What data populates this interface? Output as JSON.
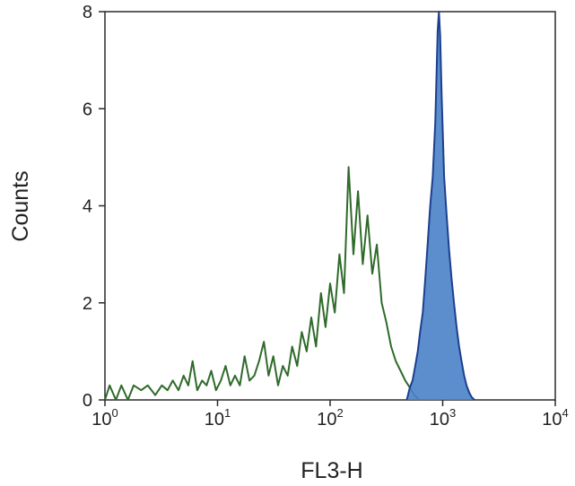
{
  "chart_data": {
    "type": "area",
    "title": "",
    "xlabel": "FL3-H",
    "ylabel": "Counts",
    "x_scale": "log",
    "xlim": [
      1,
      10000
    ],
    "ylim": [
      0,
      8
    ],
    "x_ticks": [
      {
        "value": 1,
        "base": "10",
        "exp": "0"
      },
      {
        "value": 10,
        "base": "10",
        "exp": "1"
      },
      {
        "value": 100,
        "base": "10",
        "exp": "2"
      },
      {
        "value": 1000,
        "base": "10",
        "exp": "3"
      },
      {
        "value": 10000,
        "base": "10",
        "exp": "4"
      }
    ],
    "y_ticks": [
      "0",
      "2",
      "4",
      "6",
      "8"
    ],
    "grid": false,
    "legend": "none",
    "series": [
      {
        "color": "#2f6a2a",
        "fill": "none",
        "points": [
          [
            1.0,
            0
          ],
          [
            1.1,
            0.3
          ],
          [
            1.25,
            0
          ],
          [
            1.4,
            0.3
          ],
          [
            1.6,
            0
          ],
          [
            1.8,
            0.3
          ],
          [
            2.1,
            0.2
          ],
          [
            2.4,
            0.3
          ],
          [
            2.8,
            0.1
          ],
          [
            3.2,
            0.3
          ],
          [
            3.6,
            0.2
          ],
          [
            4.0,
            0.4
          ],
          [
            4.5,
            0.2
          ],
          [
            5.0,
            0.5
          ],
          [
            5.5,
            0.3
          ],
          [
            6.0,
            0.8
          ],
          [
            6.6,
            0.2
          ],
          [
            7.3,
            0.4
          ],
          [
            8.0,
            0.3
          ],
          [
            8.8,
            0.6
          ],
          [
            9.7,
            0.2
          ],
          [
            10.7,
            0.4
          ],
          [
            11.8,
            0.7
          ],
          [
            13,
            0.3
          ],
          [
            14.3,
            0.5
          ],
          [
            15.8,
            0.3
          ],
          [
            17.4,
            0.9
          ],
          [
            19.2,
            0.4
          ],
          [
            21.2,
            0.5
          ],
          [
            23.4,
            0.8
          ],
          [
            25.8,
            1.2
          ],
          [
            28.4,
            0.5
          ],
          [
            31.3,
            0.9
          ],
          [
            34.5,
            0.3
          ],
          [
            38,
            0.7
          ],
          [
            42,
            0.5
          ],
          [
            46,
            1.1
          ],
          [
            51,
            0.7
          ],
          [
            56,
            1.4
          ],
          [
            62,
            1.0
          ],
          [
            68,
            1.7
          ],
          [
            75,
            1.1
          ],
          [
            83,
            2.2
          ],
          [
            91,
            1.5
          ],
          [
            100,
            2.4
          ],
          [
            110,
            1.8
          ],
          [
            121,
            3.0
          ],
          [
            133,
            2.2
          ],
          [
            146,
            4.8
          ],
          [
            161,
            3.0
          ],
          [
            177,
            4.3
          ],
          [
            195,
            2.8
          ],
          [
            215,
            3.8
          ],
          [
            237,
            2.6
          ],
          [
            260,
            3.2
          ],
          [
            287,
            2.0
          ],
          [
            316,
            1.6
          ],
          [
            348,
            1.1
          ],
          [
            383,
            0.8
          ],
          [
            422,
            0.6
          ],
          [
            465,
            0.4
          ],
          [
            512,
            0.25
          ],
          [
            560,
            0.1
          ],
          [
            620,
            0
          ]
        ]
      },
      {
        "color": "#1c3f8f",
        "fill": "#4a82c8",
        "points": [
          [
            480,
            0
          ],
          [
            510,
            0.25
          ],
          [
            540,
            0.4
          ],
          [
            570,
            0.7
          ],
          [
            600,
            1.0
          ],
          [
            630,
            1.4
          ],
          [
            665,
            1.8
          ],
          [
            700,
            2.5
          ],
          [
            735,
            3.2
          ],
          [
            775,
            4.0
          ],
          [
            815,
            4.6
          ],
          [
            858,
            5.7
          ],
          [
            880,
            6.6
          ],
          [
            903,
            7.6
          ],
          [
            925,
            8.0
          ],
          [
            950,
            7.5
          ],
          [
            978,
            6.3
          ],
          [
            1030,
            4.6
          ],
          [
            1085,
            3.8
          ],
          [
            1140,
            3.1
          ],
          [
            1200,
            2.5
          ],
          [
            1260,
            2.0
          ],
          [
            1330,
            1.5
          ],
          [
            1400,
            1.1
          ],
          [
            1470,
            0.8
          ],
          [
            1550,
            0.5
          ],
          [
            1630,
            0.3
          ],
          [
            1720,
            0.15
          ],
          [
            1820,
            0.05
          ],
          [
            1920,
            0
          ]
        ]
      }
    ]
  }
}
